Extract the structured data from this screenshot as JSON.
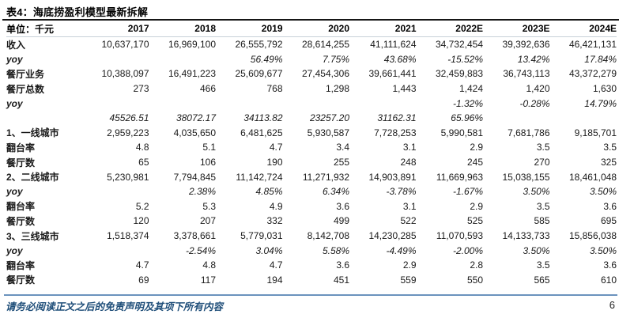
{
  "page": {
    "title": "表4：海底捞盈利模型最新拆解",
    "footer_disclaimer": "请务必阅读正文之后的免责声明及其项下所有内容",
    "page_number": "6"
  },
  "colors": {
    "title_rule": "#161616",
    "header_rule": "#c7d0d8",
    "footer_rule": "#6b93bd",
    "footer_text": "#1f4e79"
  },
  "table": {
    "unit_label": "单位：千元",
    "columns": [
      "2017",
      "2018",
      "2019",
      "2020",
      "2021",
      "2022E",
      "2023E",
      "2024E"
    ],
    "rows": [
      {
        "label": "收入",
        "style": "normal",
        "values": [
          "10,637,170",
          "16,969,100",
          "26,555,792",
          "28,614,255",
          "41,111,624",
          "34,732,454",
          "39,392,636",
          "46,421,131"
        ]
      },
      {
        "label": "yoy",
        "style": "yoy",
        "values": [
          "",
          "",
          "56.49%",
          "7.75%",
          "43.68%",
          "-15.52%",
          "13.42%",
          "17.84%"
        ]
      },
      {
        "label": "餐厅业务",
        "style": "normal",
        "values": [
          "10,388,097",
          "16,491,223",
          "25,609,677",
          "27,454,306",
          "39,661,441",
          "32,459,883",
          "36,743,113",
          "43,372,279"
        ]
      },
      {
        "label": "餐厅总数",
        "style": "normal",
        "values": [
          "273",
          "466",
          "768",
          "1,298",
          "1,443",
          "1,424",
          "1,420",
          "1,630"
        ]
      },
      {
        "label": "yoy",
        "style": "yoy",
        "values": [
          "",
          "",
          "",
          "",
          "",
          "-1.32%",
          "-0.28%",
          "14.79%"
        ]
      },
      {
        "label": "",
        "style": "yoy",
        "values": [
          "45526.51",
          "38072.17",
          "34113.82",
          "23257.20",
          "31162.31",
          "65.96%",
          "",
          ""
        ]
      },
      {
        "label": "1、一线城市",
        "style": "normal",
        "values": [
          "2,959,223",
          "4,035,650",
          "6,481,625",
          "5,930,587",
          "7,728,253",
          "5,990,581",
          "7,681,786",
          "9,185,701"
        ]
      },
      {
        "label": "翻台率",
        "style": "normal",
        "values": [
          "4.8",
          "5.1",
          "4.7",
          "3.4",
          "3.1",
          "2.9",
          "3.5",
          "3.5"
        ]
      },
      {
        "label": "餐厅数",
        "style": "normal",
        "values": [
          "65",
          "106",
          "190",
          "255",
          "248",
          "245",
          "270",
          "325"
        ]
      },
      {
        "label": "2、二线城市",
        "style": "normal",
        "values": [
          "5,230,981",
          "7,794,845",
          "11,142,724",
          "11,271,932",
          "14,903,891",
          "11,669,963",
          "15,038,155",
          "18,461,048"
        ]
      },
      {
        "label": "yoy",
        "style": "yoy",
        "values": [
          "",
          "2.38%",
          "4.85%",
          "6.34%",
          "-3.78%",
          "-1.67%",
          "3.50%",
          "3.50%"
        ]
      },
      {
        "label": "翻台率",
        "style": "normal",
        "values": [
          "5.2",
          "5.3",
          "4.9",
          "3.6",
          "3.1",
          "2.9",
          "3.5",
          "3.6"
        ]
      },
      {
        "label": "餐厅数",
        "style": "normal",
        "values": [
          "120",
          "207",
          "332",
          "499",
          "522",
          "525",
          "585",
          "695"
        ]
      },
      {
        "label": "3、三线城市",
        "style": "normal",
        "values": [
          "1,518,374",
          "3,378,661",
          "5,779,031",
          "8,142,708",
          "14,230,285",
          "11,070,593",
          "14,133,733",
          "15,856,038"
        ]
      },
      {
        "label": "yoy",
        "style": "yoy",
        "values": [
          "",
          "-2.54%",
          "3.04%",
          "5.58%",
          "-4.49%",
          "-2.00%",
          "3.50%",
          "3.50%"
        ]
      },
      {
        "label": "翻台率",
        "style": "normal",
        "values": [
          "4.7",
          "4.8",
          "4.7",
          "3.6",
          "2.9",
          "2.8",
          "3.5",
          "3.6"
        ]
      },
      {
        "label": "餐厅数",
        "style": "normal",
        "values": [
          "69",
          "117",
          "194",
          "451",
          "559",
          "550",
          "565",
          "610"
        ]
      }
    ]
  }
}
